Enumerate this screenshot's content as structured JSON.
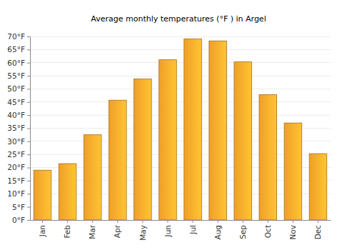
{
  "chart_data": {
    "type": "bar",
    "title": "Average monthly temperatures (°F ) in Argel",
    "categories": [
      "Jan",
      "Feb",
      "Mar",
      "Apr",
      "May",
      "Jun",
      "Jul",
      "Aug",
      "Sep",
      "Oct",
      "Nov",
      "Dec"
    ],
    "values": [
      19,
      21.5,
      32.5,
      45.7,
      53.8,
      61.1,
      69.1,
      68.3,
      60.3,
      47.8,
      37,
      25.3
    ],
    "color": "#fca82b",
    "ylim": [
      0,
      70
    ],
    "yticks": [
      {
        "value": 0,
        "label": "0°F"
      },
      {
        "value": 5,
        "label": "5°F"
      },
      {
        "value": 10,
        "label": "10°F"
      },
      {
        "value": 15,
        "label": "15°F"
      },
      {
        "value": 20,
        "label": "20°F"
      },
      {
        "value": 25,
        "label": "25°F"
      },
      {
        "value": 30,
        "label": "30°F"
      },
      {
        "value": 35,
        "label": "35°F"
      },
      {
        "value": 40,
        "label": "40°F"
      },
      {
        "value": 45,
        "label": "45°F"
      },
      {
        "value": 50,
        "label": "50°F"
      },
      {
        "value": 55,
        "label": "55°F"
      },
      {
        "value": 60,
        "label": "60°F"
      },
      {
        "value": 65,
        "label": "65°F"
      },
      {
        "value": 70,
        "label": "70°F"
      }
    ],
    "grid": true
  }
}
